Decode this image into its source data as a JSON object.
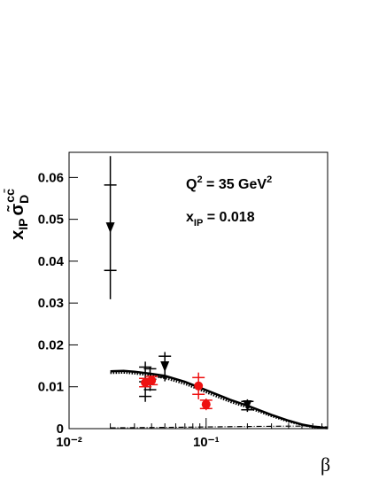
{
  "chart_data": {
    "type": "scatter",
    "y_label": {
      "main": "x",
      "sub": "IP",
      "sigma": "σ̃",
      "sigma_sub": "D",
      "sigma_sup": "cc̄"
    },
    "x_label": "β",
    "annotations": [
      {
        "main": "Q",
        "sup": "2",
        "rest": " = 35 GeV",
        "sup2": "2"
      },
      {
        "main": "x",
        "sub": "IP",
        "rest": " = 0.018"
      }
    ],
    "log_x": true,
    "xlim": [
      0.01,
      0.77
    ],
    "ylim": [
      0,
      0.066
    ],
    "xticks": [
      {
        "value": 0.01,
        "label": "10⁻²"
      },
      {
        "value": 0.1,
        "label": "10⁻¹"
      }
    ],
    "xminor_ticks": [
      0.02,
      0.03,
      0.04,
      0.05,
      0.06,
      0.07,
      0.08,
      0.09,
      0.2,
      0.3,
      0.4,
      0.5,
      0.6,
      0.7
    ],
    "yticks": [
      0,
      0.01,
      0.02,
      0.03,
      0.04,
      0.05,
      0.06
    ],
    "series": [
      {
        "marker": "triangle-down",
        "color": "#000000",
        "x": [
          0.02,
          0.05,
          0.2
        ],
        "values": [
          0.048,
          0.0148,
          0.0055
        ],
        "err_inner": [
          0.0102,
          0.0025,
          0.001
        ],
        "err_outer": [
          0.0171,
          0.0035,
          0.0015
        ]
      },
      {
        "marker": "none",
        "color": "#000000",
        "x": [
          0.036,
          0.039
        ],
        "values": [
          0.0112,
          0.0118
        ],
        "err_inner": [
          0.0035,
          0.0025
        ],
        "err_outer": [
          0.0048,
          0.0028
        ]
      },
      {
        "marker": "circle",
        "color": "#ee1111",
        "x": [
          0.036,
          0.04,
          0.088,
          0.1
        ],
        "values": [
          0.011,
          0.0115,
          0.0102,
          0.0058
        ],
        "err_inner": [
          0.001,
          0.001,
          0.002,
          0.001
        ],
        "err_outer": [
          0.001,
          0.001,
          0.0032,
          0.0014
        ]
      }
    ],
    "curves": [
      {
        "style": "solid",
        "x": [
          0.02,
          0.025,
          0.03,
          0.04,
          0.05,
          0.07,
          0.1,
          0.15,
          0.2,
          0.3,
          0.4,
          0.5,
          0.6,
          0.77
        ],
        "values": [
          0.0137,
          0.0138,
          0.0136,
          0.0131,
          0.0126,
          0.0112,
          0.0092,
          0.0069,
          0.0055,
          0.0033,
          0.0019,
          0.001,
          0.0005,
          0.0001
        ]
      },
      {
        "style": "dotted",
        "x": [
          0.02,
          0.025,
          0.03,
          0.04,
          0.05,
          0.07,
          0.1,
          0.15,
          0.2,
          0.3,
          0.4,
          0.5,
          0.6,
          0.77
        ],
        "values": [
          0.0133,
          0.0134,
          0.0132,
          0.0127,
          0.0121,
          0.0107,
          0.0087,
          0.0064,
          0.0051,
          0.003,
          0.0017,
          0.0009,
          0.0004,
          0.0001
        ]
      },
      {
        "style": "dashdot",
        "x": [
          0.02,
          0.05,
          0.1,
          0.2,
          0.4,
          0.6,
          0.77
        ],
        "values": [
          0.0002,
          0.0003,
          0.0004,
          0.0005,
          0.0006,
          0.0006,
          0.0004
        ]
      }
    ]
  }
}
